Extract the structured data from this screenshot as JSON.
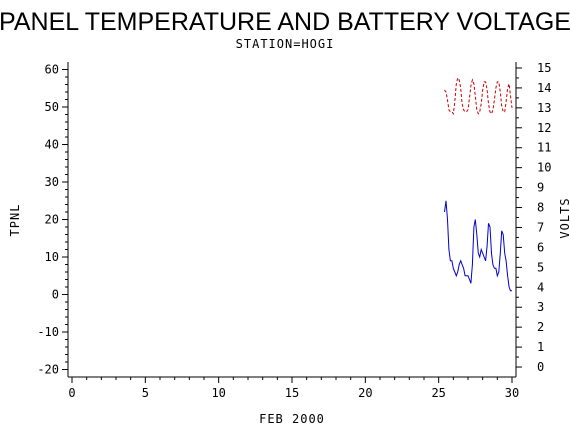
{
  "chart_data": {
    "type": "line",
    "title": "PANEL TEMPERATURE AND BATTERY VOLTAGE",
    "subtitle": "STATION=HOGI",
    "xlabel": "FEB 2000",
    "ylabel_left": "TPNL",
    "ylabel_right": "VOLTS",
    "xlim": [
      0,
      30
    ],
    "ylim_left": [
      -22,
      62
    ],
    "ylim_right": [
      -0.5,
      15.3
    ],
    "x_ticks": [
      0,
      5,
      10,
      15,
      20,
      25,
      30
    ],
    "y_ticks_left": [
      -20,
      -10,
      0,
      10,
      20,
      30,
      40,
      50,
      60
    ],
    "y_ticks_right": [
      0,
      1,
      2,
      3,
      4,
      5,
      6,
      7,
      8,
      9,
      10,
      11,
      12,
      13,
      14,
      15
    ],
    "grid": false,
    "series": [
      {
        "axis": "left",
        "color": "#0000cc",
        "style": "solid",
        "x": [
          25.4,
          25.5,
          25.6,
          25.7,
          25.8,
          25.9,
          26.0,
          26.1,
          26.2,
          26.3,
          26.4,
          26.5,
          26.6,
          26.7,
          26.8,
          26.9,
          27.0,
          27.1,
          27.2,
          27.3,
          27.4,
          27.5,
          27.6,
          27.7,
          27.8,
          27.9,
          28.0,
          28.1,
          28.2,
          28.3,
          28.4,
          28.5,
          28.6,
          28.7,
          28.8,
          28.9,
          29.0,
          29.1,
          29.2,
          29.3,
          29.4,
          29.5,
          29.6,
          29.7,
          29.8,
          29.9,
          30.0
        ],
        "values": [
          22,
          25,
          20,
          12,
          9,
          9,
          7,
          6,
          5,
          6,
          8,
          9,
          8,
          7,
          5,
          5,
          5,
          4,
          3,
          8,
          18,
          20,
          16,
          11,
          10,
          12,
          11,
          10,
          9,
          13,
          19,
          18,
          11,
          8,
          7,
          7,
          5,
          6,
          11,
          17,
          16,
          11,
          9,
          5,
          2,
          1,
          1
        ]
      },
      {
        "axis": "right",
        "color": "#cc0000",
        "style": "dashed",
        "x": [
          25.4,
          25.5,
          25.6,
          25.7,
          25.8,
          25.9,
          26.0,
          26.1,
          26.2,
          26.3,
          26.4,
          26.5,
          26.6,
          26.7,
          26.8,
          26.9,
          27.0,
          27.1,
          27.2,
          27.3,
          27.4,
          27.5,
          27.6,
          27.7,
          27.8,
          27.9,
          28.0,
          28.1,
          28.2,
          28.3,
          28.4,
          28.5,
          28.6,
          28.7,
          28.8,
          28.9,
          29.0,
          29.1,
          29.2,
          29.3,
          29.4,
          29.5,
          29.6,
          29.7,
          29.8,
          29.9,
          30.0
        ],
        "values": [
          13.9,
          13.8,
          13.4,
          12.9,
          12.8,
          12.8,
          12.7,
          13.3,
          14.2,
          14.5,
          14.4,
          14.0,
          13.2,
          12.9,
          12.8,
          12.8,
          12.9,
          13.5,
          14.1,
          14.4,
          14.2,
          13.6,
          12.9,
          12.7,
          12.8,
          13.2,
          13.9,
          14.3,
          14.3,
          13.9,
          13.2,
          12.8,
          12.7,
          12.9,
          13.4,
          14.0,
          14.3,
          14.3,
          13.8,
          13.1,
          12.8,
          12.8,
          13.3,
          14.0,
          14.2,
          13.6,
          13.0
        ]
      }
    ]
  }
}
